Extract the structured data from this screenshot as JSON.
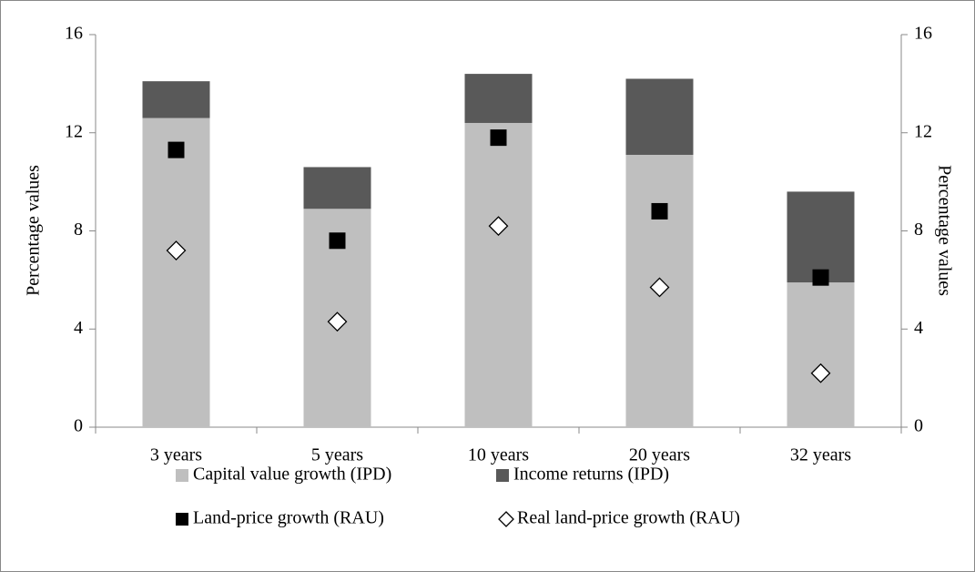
{
  "chart_data": {
    "type": "bar",
    "stacked": true,
    "categories": [
      "3 years",
      "5 years",
      "10 years",
      "20 years",
      "32 years"
    ],
    "series": [
      {
        "name": "Capital value growth (IPD)",
        "color": "#bfbfbf",
        "kind": "bar",
        "values": [
          12.6,
          8.9,
          12.4,
          11.1,
          5.9
        ]
      },
      {
        "name": "Income returns (IPD)",
        "color": "#595959",
        "kind": "bar",
        "values": [
          1.5,
          1.7,
          2.0,
          3.1,
          3.7
        ]
      },
      {
        "name": "Land-price growth (RAU)",
        "color": "#000000",
        "kind": "marker",
        "marker": "square",
        "values": [
          11.3,
          7.6,
          11.8,
          8.8,
          6.1
        ]
      },
      {
        "name": "Real land-price growth (RAU)",
        "color": "#ffffff",
        "kind": "marker",
        "marker": "diamond",
        "values": [
          7.2,
          4.3,
          8.2,
          5.7,
          2.2
        ]
      }
    ],
    "ylabel": "Percentage values",
    "y2label": "Percentage values",
    "ylim": [
      0,
      16
    ],
    "yticks": [
      0,
      4,
      8,
      12,
      16
    ],
    "y2lim": [
      0,
      16
    ],
    "y2ticks": [
      0,
      4,
      8,
      12,
      16
    ],
    "legend": "bottom"
  }
}
